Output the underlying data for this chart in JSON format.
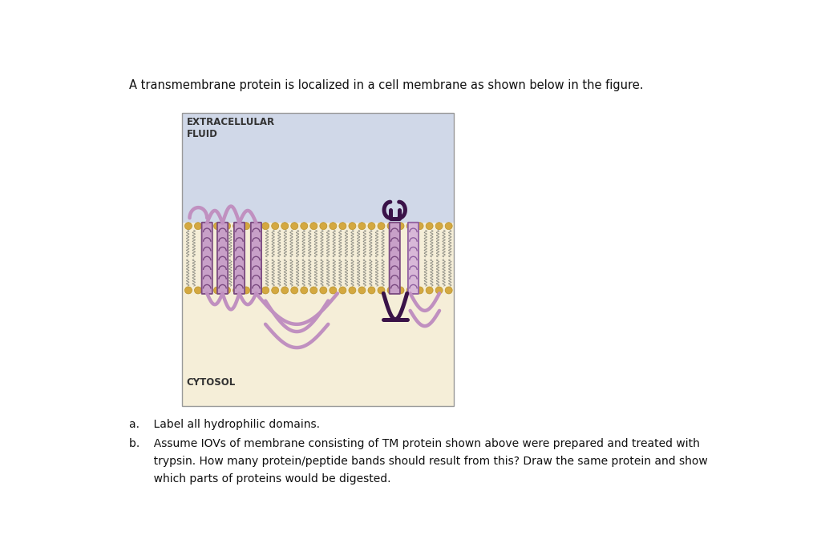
{
  "title_text": "A transmembrane protein is localized in a cell membrane as shown below in the figure.",
  "extracellular_label": "EXTRACELLULAR\nFLUID",
  "cytosol_label": "CYTOSOL",
  "question_a": "a.    Label all hydrophilic domains.",
  "question_b_line1": "b.    Assume IOVs of membrane consisting of TM protein shown above were prepared and treated with",
  "question_b_line2": "       trypsin. How many protein/peptide bands should result from this? Draw the same protein and show",
  "question_b_line3": "       which parts of proteins would be digested.",
  "bg_color": "#ffffff",
  "extracellular_bg": "#d0d8e8",
  "cytosol_bg": "#f5eed8",
  "lipid_color": "#d4a840",
  "helix_color_light": "#c8a0c8",
  "helix_color_dark": "#7a4a80",
  "loop_color": "#c090c0",
  "dark_color": "#3a1248"
}
